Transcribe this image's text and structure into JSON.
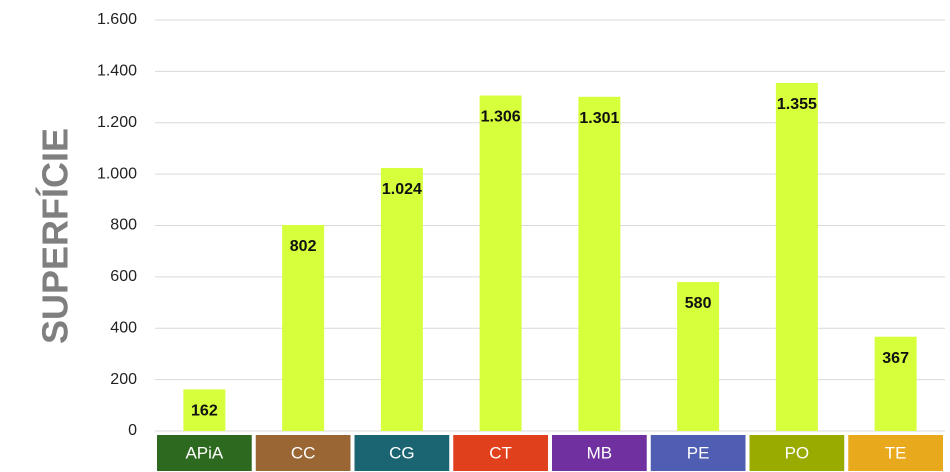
{
  "chart_data": {
    "type": "bar",
    "y_axis_label": "SUPERFÍCIE",
    "categories": [
      "APiA",
      "CC",
      "CG",
      "CT",
      "MB",
      "PE",
      "PO",
      "TE"
    ],
    "category_colors": [
      "#2d6a1f",
      "#9a6633",
      "#1b6472",
      "#e0401c",
      "#7030a0",
      "#4f5eb3",
      "#9aab00",
      "#e9a91d"
    ],
    "values": [
      162,
      802,
      1024,
      1306,
      1301,
      580,
      1355,
      367
    ],
    "value_labels": [
      "162",
      "802",
      "1.024",
      "1.306",
      "1.301",
      "580",
      "1.355",
      "367"
    ],
    "color": "#d6ff3c",
    "ylim": [
      0,
      1600
    ],
    "yticks": [
      0,
      200,
      400,
      600,
      800,
      {
        "value": 1000,
        "label": "1.000"
      },
      {
        "value": 1200,
        "label": "1.200"
      },
      {
        "value": 1400,
        "label": "1.400"
      },
      {
        "value": 1600,
        "label": "1.600"
      }
    ],
    "grid": true
  }
}
